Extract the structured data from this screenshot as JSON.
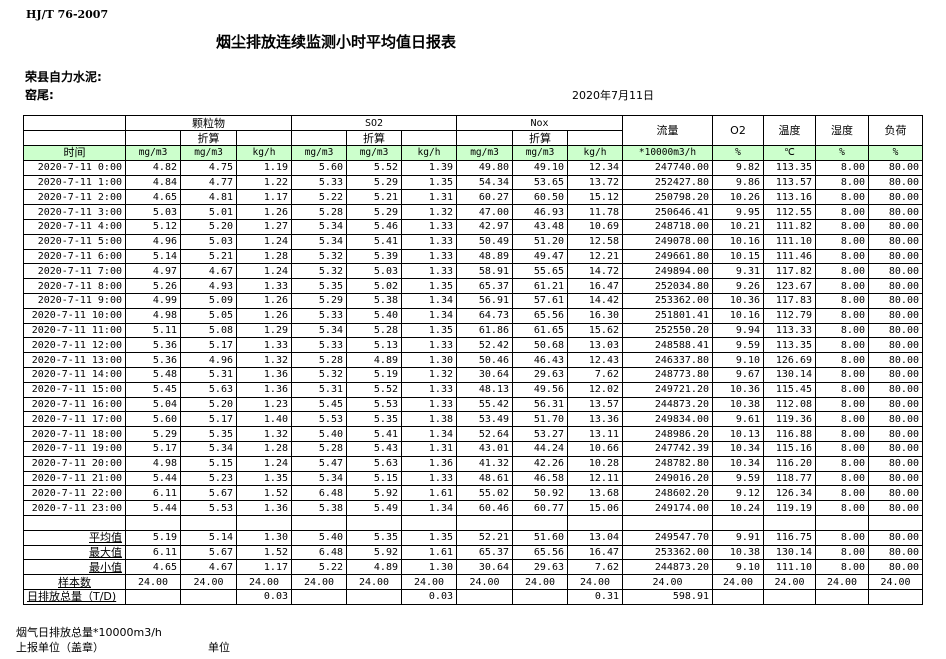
{
  "header": {
    "standard": "HJ/T  76-2007",
    "title": "烟尘排放连续监测小时平均值日报表",
    "company": "荣县自力水泥:",
    "kiln": "窑尾:",
    "date": "2020年7月11日"
  },
  "table": {
    "groups": {
      "particulate": "颗粒物",
      "so2": "SO2",
      "nox": "Nox",
      "flow": "流量",
      "o2": "O2",
      "temp": "温度",
      "humidity": "湿度",
      "load": "负荷",
      "converted": "折算"
    },
    "units": [
      "时间",
      "mg/m3",
      "mg/m3",
      "kg/h",
      "mg/m3",
      "mg/m3",
      "kg/h",
      "mg/m3",
      "mg/m3",
      "kg/h",
      "*10000m3/h",
      "%",
      "℃",
      "%",
      "%"
    ],
    "rows": [
      [
        "2020-7-11 0:00",
        "4.82",
        "4.75",
        "1.19",
        "5.60",
        "5.52",
        "1.39",
        "49.80",
        "49.10",
        "12.34",
        "247740.00",
        "9.82",
        "113.35",
        "8.00",
        "80.00"
      ],
      [
        "2020-7-11 1:00",
        "4.84",
        "4.77",
        "1.22",
        "5.33",
        "5.29",
        "1.35",
        "54.34",
        "53.65",
        "13.72",
        "252427.80",
        "9.86",
        "113.57",
        "8.00",
        "80.00"
      ],
      [
        "2020-7-11 2:00",
        "4.65",
        "4.81",
        "1.17",
        "5.22",
        "5.21",
        "1.31",
        "60.27",
        "60.50",
        "15.12",
        "250798.20",
        "10.26",
        "113.16",
        "8.00",
        "80.00"
      ],
      [
        "2020-7-11 3:00",
        "5.03",
        "5.01",
        "1.26",
        "5.28",
        "5.29",
        "1.32",
        "47.00",
        "46.93",
        "11.78",
        "250646.41",
        "9.95",
        "112.55",
        "8.00",
        "80.00"
      ],
      [
        "2020-7-11 4:00",
        "5.12",
        "5.20",
        "1.27",
        "5.34",
        "5.46",
        "1.33",
        "42.97",
        "43.48",
        "10.69",
        "248718.00",
        "10.21",
        "111.82",
        "8.00",
        "80.00"
      ],
      [
        "2020-7-11 5:00",
        "4.96",
        "5.03",
        "1.24",
        "5.34",
        "5.41",
        "1.33",
        "50.49",
        "51.20",
        "12.58",
        "249078.00",
        "10.16",
        "111.10",
        "8.00",
        "80.00"
      ],
      [
        "2020-7-11 6:00",
        "5.14",
        "5.21",
        "1.28",
        "5.32",
        "5.39",
        "1.33",
        "48.89",
        "49.47",
        "12.21",
        "249661.80",
        "10.15",
        "111.46",
        "8.00",
        "80.00"
      ],
      [
        "2020-7-11 7:00",
        "4.97",
        "4.67",
        "1.24",
        "5.32",
        "5.03",
        "1.33",
        "58.91",
        "55.65",
        "14.72",
        "249894.00",
        "9.31",
        "117.82",
        "8.00",
        "80.00"
      ],
      [
        "2020-7-11 8:00",
        "5.26",
        "4.93",
        "1.33",
        "5.35",
        "5.02",
        "1.35",
        "65.37",
        "61.21",
        "16.47",
        "252034.80",
        "9.26",
        "123.67",
        "8.00",
        "80.00"
      ],
      [
        "2020-7-11 9:00",
        "4.99",
        "5.09",
        "1.26",
        "5.29",
        "5.38",
        "1.34",
        "56.91",
        "57.61",
        "14.42",
        "253362.00",
        "10.36",
        "117.83",
        "8.00",
        "80.00"
      ],
      [
        "2020-7-11 10:00",
        "4.98",
        "5.05",
        "1.26",
        "5.33",
        "5.40",
        "1.34",
        "64.73",
        "65.56",
        "16.30",
        "251801.41",
        "10.16",
        "112.79",
        "8.00",
        "80.00"
      ],
      [
        "2020-7-11 11:00",
        "5.11",
        "5.08",
        "1.29",
        "5.34",
        "5.28",
        "1.35",
        "61.86",
        "61.65",
        "15.62",
        "252550.20",
        "9.94",
        "113.33",
        "8.00",
        "80.00"
      ],
      [
        "2020-7-11 12:00",
        "5.36",
        "5.17",
        "1.33",
        "5.33",
        "5.13",
        "1.33",
        "52.42",
        "50.68",
        "13.03",
        "248588.41",
        "9.59",
        "113.35",
        "8.00",
        "80.00"
      ],
      [
        "2020-7-11 13:00",
        "5.36",
        "4.96",
        "1.32",
        "5.28",
        "4.89",
        "1.30",
        "50.46",
        "46.43",
        "12.43",
        "246337.80",
        "9.10",
        "126.69",
        "8.00",
        "80.00"
      ],
      [
        "2020-7-11 14:00",
        "5.48",
        "5.31",
        "1.36",
        "5.32",
        "5.19",
        "1.32",
        "30.64",
        "29.63",
        "7.62",
        "248773.80",
        "9.67",
        "130.14",
        "8.00",
        "80.00"
      ],
      [
        "2020-7-11 15:00",
        "5.45",
        "5.63",
        "1.36",
        "5.31",
        "5.52",
        "1.33",
        "48.13",
        "49.56",
        "12.02",
        "249721.20",
        "10.36",
        "115.45",
        "8.00",
        "80.00"
      ],
      [
        "2020-7-11 16:00",
        "5.04",
        "5.20",
        "1.23",
        "5.45",
        "5.53",
        "1.33",
        "55.42",
        "56.31",
        "13.57",
        "244873.20",
        "10.38",
        "112.08",
        "8.00",
        "80.00"
      ],
      [
        "2020-7-11 17:00",
        "5.60",
        "5.17",
        "1.40",
        "5.53",
        "5.35",
        "1.38",
        "53.49",
        "51.70",
        "13.36",
        "249834.00",
        "9.61",
        "119.36",
        "8.00",
        "80.00"
      ],
      [
        "2020-7-11 18:00",
        "5.29",
        "5.35",
        "1.32",
        "5.40",
        "5.41",
        "1.34",
        "52.64",
        "53.27",
        "13.11",
        "248986.20",
        "10.13",
        "116.88",
        "8.00",
        "80.00"
      ],
      [
        "2020-7-11 19:00",
        "5.17",
        "5.34",
        "1.28",
        "5.28",
        "5.43",
        "1.31",
        "43.01",
        "44.24",
        "10.66",
        "247742.39",
        "10.34",
        "115.16",
        "8.00",
        "80.00"
      ],
      [
        "2020-7-11 20:00",
        "4.98",
        "5.15",
        "1.24",
        "5.47",
        "5.63",
        "1.36",
        "41.32",
        "42.26",
        "10.28",
        "248782.80",
        "10.34",
        "116.20",
        "8.00",
        "80.00"
      ],
      [
        "2020-7-11 21:00",
        "5.44",
        "5.23",
        "1.35",
        "5.34",
        "5.15",
        "1.33",
        "48.61",
        "46.58",
        "12.11",
        "249016.20",
        "9.59",
        "118.77",
        "8.00",
        "80.00"
      ],
      [
        "2020-7-11 22:00",
        "6.11",
        "5.67",
        "1.52",
        "6.48",
        "5.92",
        "1.61",
        "55.02",
        "50.92",
        "13.68",
        "248602.20",
        "9.12",
        "126.34",
        "8.00",
        "80.00"
      ],
      [
        "2020-7-11 23:00",
        "5.44",
        "5.53",
        "1.36",
        "5.38",
        "5.49",
        "1.34",
        "60.46",
        "60.77",
        "15.06",
        "249174.00",
        "10.24",
        "119.19",
        "8.00",
        "80.00"
      ]
    ],
    "summary": [
      [
        "平均值",
        "5.19",
        "5.14",
        "1.30",
        "5.40",
        "5.35",
        "1.35",
        "52.21",
        "51.60",
        "13.04",
        "249547.70",
        "9.91",
        "116.75",
        "8.00",
        "80.00"
      ],
      [
        "最大值",
        "6.11",
        "5.67",
        "1.52",
        "6.48",
        "5.92",
        "1.61",
        "65.37",
        "65.56",
        "16.47",
        "253362.00",
        "10.38",
        "130.14",
        "8.00",
        "80.00"
      ],
      [
        "最小值",
        "4.65",
        "4.67",
        "1.17",
        "5.22",
        "4.89",
        "1.30",
        "30.64",
        "29.63",
        "7.62",
        "244873.20",
        "9.10",
        "111.10",
        "8.00",
        "80.00"
      ],
      [
        "样本数",
        "24.00",
        "24.00",
        "24.00",
        "24.00",
        "24.00",
        "24.00",
        "24.00",
        "24.00",
        "24.00",
        "24.00",
        "24.00",
        "24.00",
        "24.00",
        "24.00"
      ]
    ],
    "total": [
      "日排放总量（T/D)",
      "",
      "",
      "0.03",
      "",
      "",
      "0.03",
      "",
      "",
      "0.31",
      "598.91",
      "",
      "",
      "",
      ""
    ]
  },
  "footer": {
    "flue_total": "烟气日排放总量*10000m3/h",
    "report_unit": "上报单位（盖章）",
    "unit": "单位"
  },
  "colors": {
    "unit_row_bg": "#ccffcc"
  }
}
